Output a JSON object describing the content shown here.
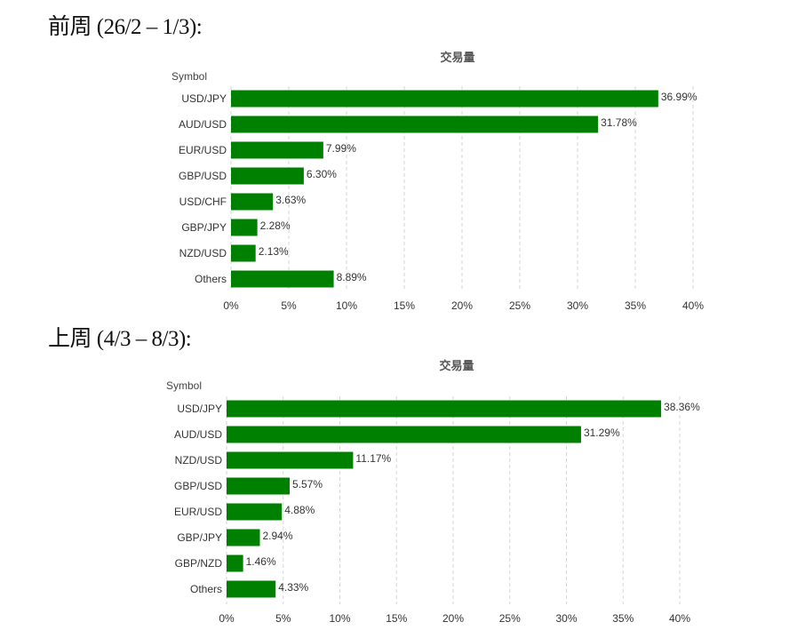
{
  "headings": [
    "前周 (26/2 – 1/3):",
    "上周 (4/3 – 8/3):"
  ],
  "chart_data": [
    {
      "type": "bar",
      "orientation": "horizontal",
      "title": "交易量",
      "category_axis_label": "Symbol",
      "categories": [
        "USD/JPY",
        "AUD/USD",
        "EUR/USD",
        "GBP/USD",
        "USD/CHF",
        "GBP/JPY",
        "NZD/USD",
        "Others"
      ],
      "values": [
        36.99,
        31.78,
        7.99,
        6.3,
        3.63,
        2.28,
        2.13,
        8.89
      ],
      "value_labels": [
        "36.99%",
        "31.78%",
        "7.99%",
        "6.30%",
        "3.63%",
        "2.28%",
        "2.13%",
        "8.89%"
      ],
      "xlim": [
        0,
        40
      ],
      "ticks": [
        "0%",
        "5%",
        "10%",
        "15%",
        "20%",
        "25%",
        "30%",
        "35%",
        "40%"
      ],
      "grid": true,
      "bar_color": "#008000"
    },
    {
      "type": "bar",
      "orientation": "horizontal",
      "title": "交易量",
      "category_axis_label": "Symbol",
      "categories": [
        "USD/JPY",
        "AUD/USD",
        "NZD/USD",
        "GBP/USD",
        "EUR/USD",
        "GBP/JPY",
        "GBP/NZD",
        "Others"
      ],
      "values": [
        38.36,
        31.29,
        11.17,
        5.57,
        4.88,
        2.94,
        1.46,
        4.33
      ],
      "value_labels": [
        "38.36%",
        "31.29%",
        "11.17%",
        "5.57%",
        "4.88%",
        "2.94%",
        "1.46%",
        "4.33%"
      ],
      "xlim": [
        0,
        40
      ],
      "ticks": [
        "0%",
        "5%",
        "10%",
        "15%",
        "20%",
        "25%",
        "30%",
        "35%",
        "40%"
      ],
      "grid": true,
      "bar_color": "#008000"
    }
  ]
}
